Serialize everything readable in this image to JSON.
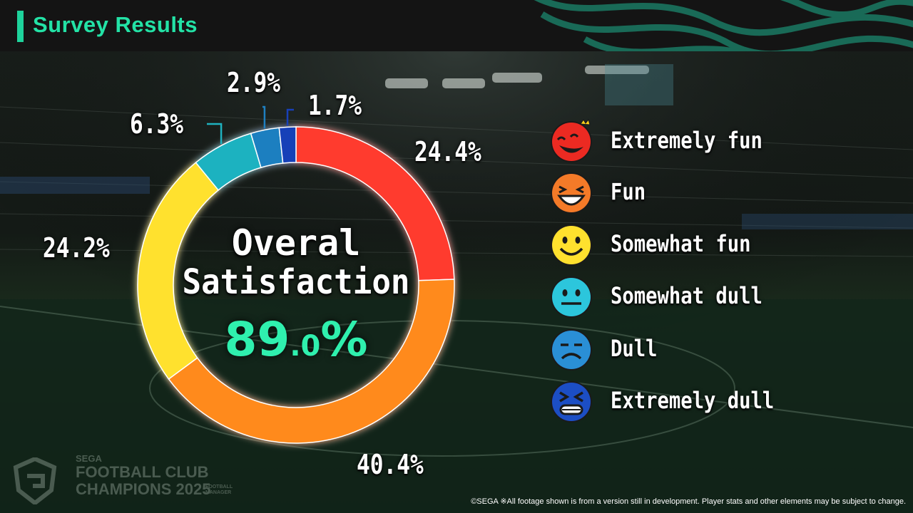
{
  "header": {
    "title": "Survey Results"
  },
  "chart_data": {
    "type": "pie",
    "categories": [
      "Extremely fun",
      "Fun",
      "Somewhat fun",
      "Somewhat dull",
      "Dull",
      "Extremely dull"
    ],
    "values": [
      24.4,
      40.4,
      24.2,
      6.3,
      2.9,
      1.7
    ],
    "value_labels": [
      "24.4%",
      "40.4%",
      "24.2%",
      "6.3%",
      "2.9%",
      "1.7%"
    ],
    "colors": [
      "#ff3a2e",
      "#ff8a1c",
      "#ffe12e",
      "#1fb2c0",
      "#1f7fc0",
      "#1840b8"
    ],
    "center_title": [
      "Overal",
      "Satisfaction"
    ],
    "center_value": {
      "integer": "89",
      "decimal": ".0",
      "symbol": "%"
    },
    "legend_placement": "right"
  },
  "legend": {
    "items": [
      {
        "label": "Extremely fun",
        "icon": "extremely-fun-face-icon"
      },
      {
        "label": "Fun",
        "icon": "fun-face-icon"
      },
      {
        "label": "Somewhat fun",
        "icon": "somewhat-fun-face-icon"
      },
      {
        "label": "Somewhat dull",
        "icon": "somewhat-dull-face-icon"
      },
      {
        "label": "Dull",
        "icon": "dull-face-icon"
      },
      {
        "label": "Extremely dull",
        "icon": "extremely-dull-face-icon"
      }
    ]
  },
  "branding": {
    "logo_sega": "SEGA",
    "logo_line1": "FOOTBALL CLUB",
    "logo_line2": "CHAMPIONS 2025",
    "logo_sub": "FOOTBALL MANAGER"
  },
  "footer": {
    "note": "©SEGA  ※All footage shown is from a version still in development. Player stats and other elements may be subject to change."
  }
}
